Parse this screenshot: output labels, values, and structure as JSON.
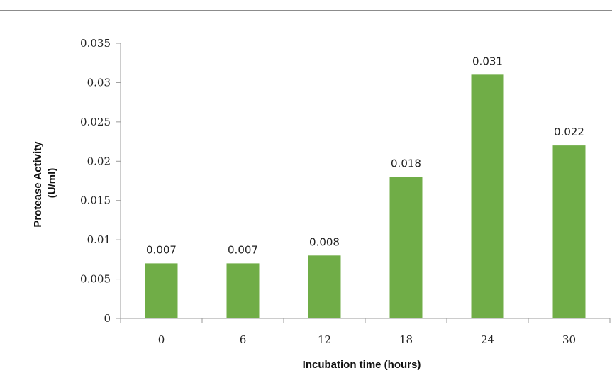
{
  "chart_data": {
    "type": "bar",
    "categories": [
      "0",
      "6",
      "12",
      "18",
      "24",
      "30"
    ],
    "values": [
      0.007,
      0.007,
      0.008,
      0.018,
      0.031,
      0.022
    ],
    "data_labels": [
      "0.007",
      "0.007",
      "0.008",
      "0.018",
      "0.031",
      "0.022"
    ],
    "title": "",
    "xlabel": "Incubation time (hours)",
    "ylabel_lines": [
      "Protease Activity",
      "(U/ml)"
    ],
    "ylim": [
      0,
      0.035
    ],
    "yticks": [
      0,
      0.005,
      0.01,
      0.015,
      0.02,
      0.025,
      0.03,
      0.035
    ],
    "ytick_labels": [
      "0",
      "0.005",
      "0.01",
      "0.015",
      "0.02",
      "0.025",
      "0.03",
      "0.035"
    ],
    "grid": false,
    "legend": "none",
    "bar_color": "#70ad47"
  }
}
